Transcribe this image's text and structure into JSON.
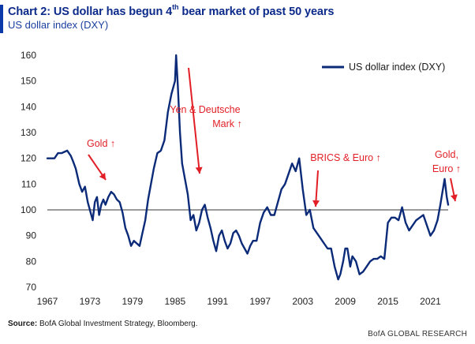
{
  "header": {
    "title_pre": "Chart 2: US dollar has begun 4",
    "title_sup": "th",
    "title_post": " bear market of past 50 years",
    "subtitle": "US dollar index (DXY)"
  },
  "source": {
    "label": "Source:",
    "text": "BofA Global Investment Strategy, Bloomberg."
  },
  "footer": "BofA GLOBAL RESEARCH",
  "colors": {
    "series": "#0b2a78",
    "reference": "#9a9a9a",
    "annotation": "#e21f26",
    "accent": "#0b3aa8"
  },
  "chart_data": {
    "type": "line",
    "title": "Chart 2: US dollar has begun 4th bear market of past 50 years",
    "subtitle": "US dollar index (DXY)",
    "xlabel": "",
    "ylabel": "",
    "xlim": [
      1967,
      2023.5
    ],
    "ylim": [
      70,
      160
    ],
    "x_ticks": [
      1967,
      1973,
      1979,
      1985,
      1991,
      1997,
      2003,
      2009,
      2015,
      2021
    ],
    "y_ticks": [
      70,
      80,
      90,
      100,
      110,
      120,
      130,
      140,
      150,
      160
    ],
    "grid": false,
    "legend": {
      "position": "top-right",
      "entries": [
        "US dollar index (DXY)"
      ]
    },
    "reference_line": {
      "y": 100
    },
    "series": [
      {
        "name": "US dollar index (DXY)",
        "x": [
          1967.0,
          1968.0,
          1968.5,
          1969.0,
          1969.8,
          1970.3,
          1970.6,
          1971.0,
          1971.5,
          1971.9,
          1972.3,
          1972.7,
          1973.1,
          1973.4,
          1973.7,
          1974.0,
          1974.3,
          1974.6,
          1974.9,
          1975.2,
          1975.6,
          1976.0,
          1976.4,
          1976.8,
          1977.2,
          1977.6,
          1978.0,
          1978.4,
          1978.8,
          1979.2,
          1979.6,
          1980.0,
          1980.4,
          1980.8,
          1981.2,
          1981.6,
          1982.0,
          1982.5,
          1983.0,
          1983.5,
          1984.0,
          1984.5,
          1985.0,
          1985.15,
          1985.4,
          1985.7,
          1986.0,
          1986.4,
          1986.8,
          1987.2,
          1987.6,
          1988.0,
          1988.4,
          1988.8,
          1989.2,
          1989.6,
          1990.0,
          1990.4,
          1990.8,
          1991.2,
          1991.6,
          1992.0,
          1992.4,
          1992.8,
          1993.2,
          1993.6,
          1994.0,
          1994.4,
          1994.8,
          1995.2,
          1995.6,
          1996.0,
          1996.5,
          1997.0,
          1997.5,
          1998.0,
          1998.5,
          1999.0,
          1999.5,
          2000.0,
          2000.5,
          2001.0,
          2001.5,
          2002.0,
          2002.5,
          2003.0,
          2003.5,
          2004.0,
          2004.5,
          2005.0,
          2005.5,
          2006.0,
          2006.5,
          2007.0,
          2007.5,
          2008.0,
          2008.3,
          2008.7,
          2009.0,
          2009.3,
          2009.7,
          2010.0,
          2010.5,
          2011.0,
          2011.5,
          2012.0,
          2012.5,
          2013.0,
          2013.5,
          2014.0,
          2014.5,
          2015.0,
          2015.5,
          2016.0,
          2016.5,
          2017.0,
          2017.5,
          2018.0,
          2018.5,
          2019.0,
          2019.5,
          2020.0,
          2020.5,
          2021.0,
          2021.5,
          2022.0,
          2022.4,
          2022.75,
          2023.0,
          2023.3,
          2023.5
        ],
        "values": [
          120,
          120,
          122,
          122,
          123,
          121,
          119,
          116,
          110,
          107,
          109,
          103,
          99,
          96,
          103,
          105,
          98,
          102,
          104,
          102,
          105,
          107,
          106,
          104,
          103,
          99,
          93,
          90,
          86,
          88,
          87,
          86,
          91,
          96,
          104,
          110,
          116,
          122,
          123,
          127,
          138,
          145,
          150,
          160,
          148,
          130,
          118,
          112,
          106,
          96,
          98,
          92,
          95,
          100,
          102,
          97,
          93,
          88,
          84,
          90,
          92,
          88,
          85,
          87,
          91,
          92,
          90,
          87,
          85,
          83,
          86,
          88,
          88,
          95,
          99,
          101,
          98,
          98,
          103,
          108,
          110,
          114,
          118,
          115,
          120,
          108,
          98,
          100,
          93,
          91,
          89,
          87,
          85,
          85,
          78,
          73,
          75,
          80,
          85,
          85,
          78,
          82,
          80,
          75,
          76,
          78,
          80,
          81,
          81,
          82,
          81,
          95,
          97,
          97,
          96,
          101,
          95,
          92,
          94,
          96,
          97,
          98,
          94,
          90,
          92,
          96,
          102,
          108,
          112,
          105,
          102
        ]
      }
    ],
    "annotations": [
      {
        "text": "Gold ↑",
        "x": 1974.5,
        "y": 128
      },
      {
        "text": "Yen & Deutsche Mark ↑",
        "x": 1989,
        "y": 143
      },
      {
        "text": "BRICS & Euro ↑",
        "x": 2006,
        "y": 115
      },
      {
        "text": "Gold, Euro ↑",
        "x": 2021.5,
        "y": 121
      }
    ]
  }
}
